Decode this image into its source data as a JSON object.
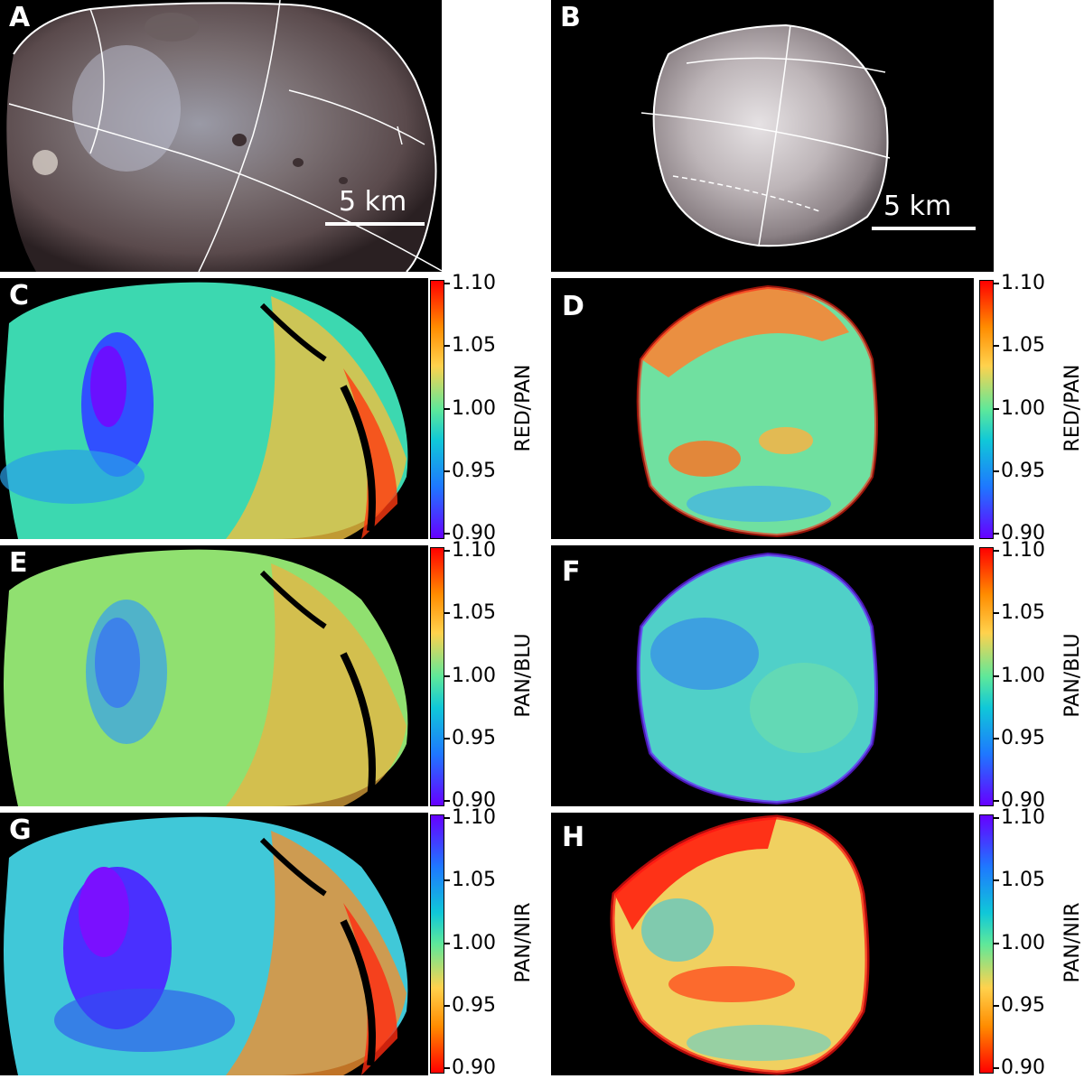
{
  "panels": {
    "A": {
      "label": "A",
      "scale": "5 km"
    },
    "B": {
      "label": "B",
      "scale": "5 km"
    },
    "C": {
      "label": "C"
    },
    "D": {
      "label": "D"
    },
    "E": {
      "label": "E"
    },
    "F": {
      "label": "F"
    },
    "G": {
      "label": "G"
    },
    "H": {
      "label": "H"
    }
  },
  "colorbars": {
    "red_pan": {
      "label": "RED/PAN",
      "ticks": [
        "1.10",
        "1.05",
        "1.00",
        "0.95",
        "0.90"
      ],
      "reversed": false
    },
    "pan_blu": {
      "label": "PAN/BLU",
      "ticks": [
        "1.10",
        "1.05",
        "1.00",
        "0.95",
        "0.90"
      ],
      "reversed": false
    },
    "pan_nir": {
      "label": "PAN/NIR",
      "ticks": [
        "1.10",
        "1.05",
        "1.00",
        "0.95",
        "0.90"
      ],
      "reversed": true
    }
  },
  "colors": {
    "background": "#000000",
    "outline": "#ffffff",
    "high": "#ff0000",
    "mid": "#5ee89a",
    "low": "#6600ff"
  }
}
